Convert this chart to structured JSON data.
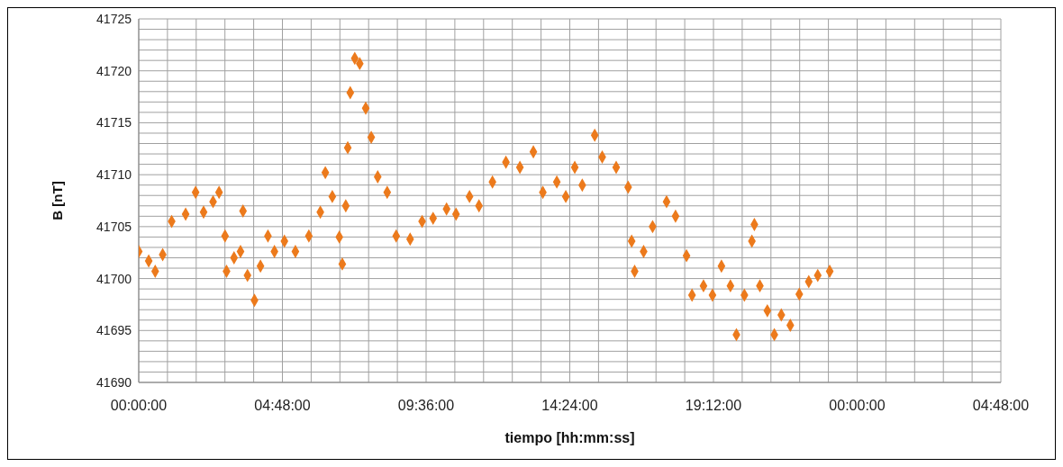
{
  "chart_data": {
    "type": "scatter",
    "xlabel": "tiempo [hh:mm:ss]",
    "ylabel": "B [nT]",
    "x": [
      "2000-01-01T00:00",
      "2000-01-01T00:20",
      "2000-01-01T00:33",
      "2000-01-01T00:48",
      "2000-01-01T01:06",
      "2000-01-01T01:34",
      "2000-01-01T01:54",
      "2000-01-01T02:10",
      "2000-01-01T02:29",
      "2000-01-01T02:41",
      "2000-01-01T02:53",
      "2000-01-01T02:56",
      "2000-01-01T03:11",
      "2000-01-01T03:24",
      "2000-01-01T03:29",
      "2000-01-01T03:38",
      "2000-01-01T03:52",
      "2000-01-01T04:04",
      "2000-01-01T04:19",
      "2000-01-01T04:32",
      "2000-01-01T04:52",
      "2000-01-01T05:14",
      "2000-01-01T05:41",
      "2000-01-01T06:04",
      "2000-01-01T06:14",
      "2000-01-01T06:28",
      "2000-01-01T06:42",
      "2000-01-01T06:48",
      "2000-01-01T06:55",
      "2000-01-01T06:59",
      "2000-01-01T07:04",
      "2000-01-01T07:13",
      "2000-01-01T07:23",
      "2000-01-01T07:35",
      "2000-01-01T07:46",
      "2000-01-01T07:59",
      "2000-01-01T08:18",
      "2000-01-01T08:36",
      "2000-01-01T09:04",
      "2000-01-01T09:28",
      "2000-01-01T09:50",
      "2000-01-01T10:17",
      "2000-01-01T10:36",
      "2000-01-01T11:03",
      "2000-01-01T11:22",
      "2000-01-01T11:49",
      "2000-01-01T12:16",
      "2000-01-01T12:44",
      "2000-01-01T13:11",
      "2000-01-01T13:30",
      "2000-01-01T13:58",
      "2000-01-01T14:16",
      "2000-01-01T14:34",
      "2000-01-01T14:49",
      "2000-01-01T15:14",
      "2000-01-01T15:29",
      "2000-01-01T15:57",
      "2000-01-01T16:21",
      "2000-01-01T16:28",
      "2000-01-01T16:34",
      "2000-01-01T16:52",
      "2000-01-01T17:10",
      "2000-01-01T17:38",
      "2000-01-01T17:56",
      "2000-01-01T18:18",
      "2000-01-01T18:29",
      "2000-01-01T18:52",
      "2000-01-01T19:10",
      "2000-01-01T19:28",
      "2000-01-01T19:46",
      "2000-01-01T19:58",
      "2000-01-01T20:14",
      "2000-01-01T20:29",
      "2000-01-01T20:34",
      "2000-01-01T20:45",
      "2000-01-01T21:00",
      "2000-01-01T21:14",
      "2000-01-01T21:28",
      "2000-01-01T21:46",
      "2000-01-01T22:04",
      "2000-01-01T22:23",
      "2000-01-01T22:41",
      "2000-01-01T23:05"
    ],
    "series": [
      {
        "color": "#ec7a1c",
        "values": [
          41702.6,
          41701.7,
          41700.7,
          41702.3,
          41705.5,
          41706.2,
          41708.3,
          41706.4,
          41707.4,
          41708.3,
          41704.1,
          41700.7,
          41702,
          41702.6,
          41706.5,
          41700.3,
          41697.9,
          41701.2,
          41704.1,
          41702.6,
          41703.6,
          41702.6,
          41704.1,
          41706.4,
          41710.2,
          41707.9,
          41704,
          41701.4,
          41707,
          41712.6,
          41717.9,
          41721.2,
          41720.7,
          41716.4,
          41713.6,
          41709.8,
          41708.3,
          41704.1,
          41703.8,
          41705.5,
          41705.8,
          41706.7,
          41706.2,
          41707.9,
          41707,
          41709.3,
          41711.2,
          41710.7,
          41712.2,
          41708.3,
          41709.3,
          41707.9,
          41710.7,
          41709,
          41713.8,
          41711.7,
          41710.7,
          41708.8,
          41703.6,
          41700.7,
          41702.6,
          41705,
          41707.4,
          41706,
          41702.2,
          41698.4,
          41699.3,
          41698.4,
          41701.2,
          41699.3,
          41694.6,
          41698.4,
          41703.6,
          41705.2,
          41699.3,
          41696.9,
          41694.6,
          41696.5,
          41695.5,
          41698.5,
          41699.7,
          41700.3,
          41700.7
        ]
      }
    ],
    "marker": "diamond",
    "legend": false,
    "grid": true,
    "xlim": [
      "2000-01-01T00:00",
      "2000-01-02T04:48"
    ],
    "xticks": [
      {
        "value": "2000-01-01T00:00",
        "label": "00:00:00"
      },
      {
        "value": "2000-01-01T00:57:36",
        "label": null
      },
      {
        "value": "2000-01-01T01:55:12",
        "label": null
      },
      {
        "value": "2000-01-01T02:52:48",
        "label": null
      },
      {
        "value": "2000-01-01T03:50:24",
        "label": null
      },
      {
        "value": "2000-01-01T04:48",
        "label": "04:48:00"
      },
      {
        "value": "2000-01-01T05:45:36",
        "label": null
      },
      {
        "value": "2000-01-01T06:43:12",
        "label": null
      },
      {
        "value": "2000-01-01T07:40:48",
        "label": null
      },
      {
        "value": "2000-01-01T08:38:24",
        "label": null
      },
      {
        "value": "2000-01-01T09:36",
        "label": "09:36:00"
      },
      {
        "value": "2000-01-01T10:33:36",
        "label": null
      },
      {
        "value": "2000-01-01T11:31:12",
        "label": null
      },
      {
        "value": "2000-01-01T12:28:48",
        "label": null
      },
      {
        "value": "2000-01-01T13:26:24",
        "label": null
      },
      {
        "value": "2000-01-01T14:24",
        "label": "14:24:00"
      },
      {
        "value": "2000-01-01T15:21:36",
        "label": null
      },
      {
        "value": "2000-01-01T16:19:12",
        "label": null
      },
      {
        "value": "2000-01-01T17:16:48",
        "label": null
      },
      {
        "value": "2000-01-01T18:14:24",
        "label": null
      },
      {
        "value": "2000-01-01T19:12",
        "label": "19:12:00"
      },
      {
        "value": "2000-01-01T20:09:36",
        "label": null
      },
      {
        "value": "2000-01-01T21:07:12",
        "label": null
      },
      {
        "value": "2000-01-01T22:04:48",
        "label": null
      },
      {
        "value": "2000-01-01T23:02:24",
        "label": null
      },
      {
        "value": "2000-01-02T00:00",
        "label": "00:00:00"
      },
      {
        "value": "2000-01-02T00:57:36",
        "label": null
      },
      {
        "value": "2000-01-02T01:55:12",
        "label": null
      },
      {
        "value": "2000-01-02T02:52:48",
        "label": null
      },
      {
        "value": "2000-01-02T03:50:24",
        "label": null
      },
      {
        "value": "2000-01-02T04:48",
        "label": "04:48:00"
      }
    ],
    "ylim": [
      41690,
      41725
    ],
    "yticks": [
      41690,
      {
        "value": 41691,
        "label": null
      },
      {
        "value": 41692,
        "label": null
      },
      {
        "value": 41693,
        "label": null
      },
      {
        "value": 41694,
        "label": null
      },
      41695,
      {
        "value": 41696,
        "label": null
      },
      {
        "value": 41697,
        "label": null
      },
      {
        "value": 41698,
        "label": null
      },
      {
        "value": 41699,
        "label": null
      },
      41700,
      {
        "value": 41701,
        "label": null
      },
      {
        "value": 41702,
        "label": null
      },
      {
        "value": 41703,
        "label": null
      },
      {
        "value": 41704,
        "label": null
      },
      41705,
      {
        "value": 41706,
        "label": null
      },
      {
        "value": 41707,
        "label": null
      },
      {
        "value": 41708,
        "label": null
      },
      {
        "value": 41709,
        "label": null
      },
      41710,
      {
        "value": 41711,
        "label": null
      },
      {
        "value": 41712,
        "label": null
      },
      {
        "value": 41713,
        "label": null
      },
      {
        "value": 41714,
        "label": null
      },
      41715,
      {
        "value": 41716,
        "label": null
      },
      {
        "value": 41717,
        "label": null
      },
      {
        "value": 41718,
        "label": null
      },
      {
        "value": 41719,
        "label": null
      },
      41720,
      {
        "value": 41721,
        "label": null
      },
      {
        "value": 41722,
        "label": null
      },
      {
        "value": 41723,
        "label": null
      },
      {
        "value": 41724,
        "label": null
      },
      41725
    ]
  }
}
